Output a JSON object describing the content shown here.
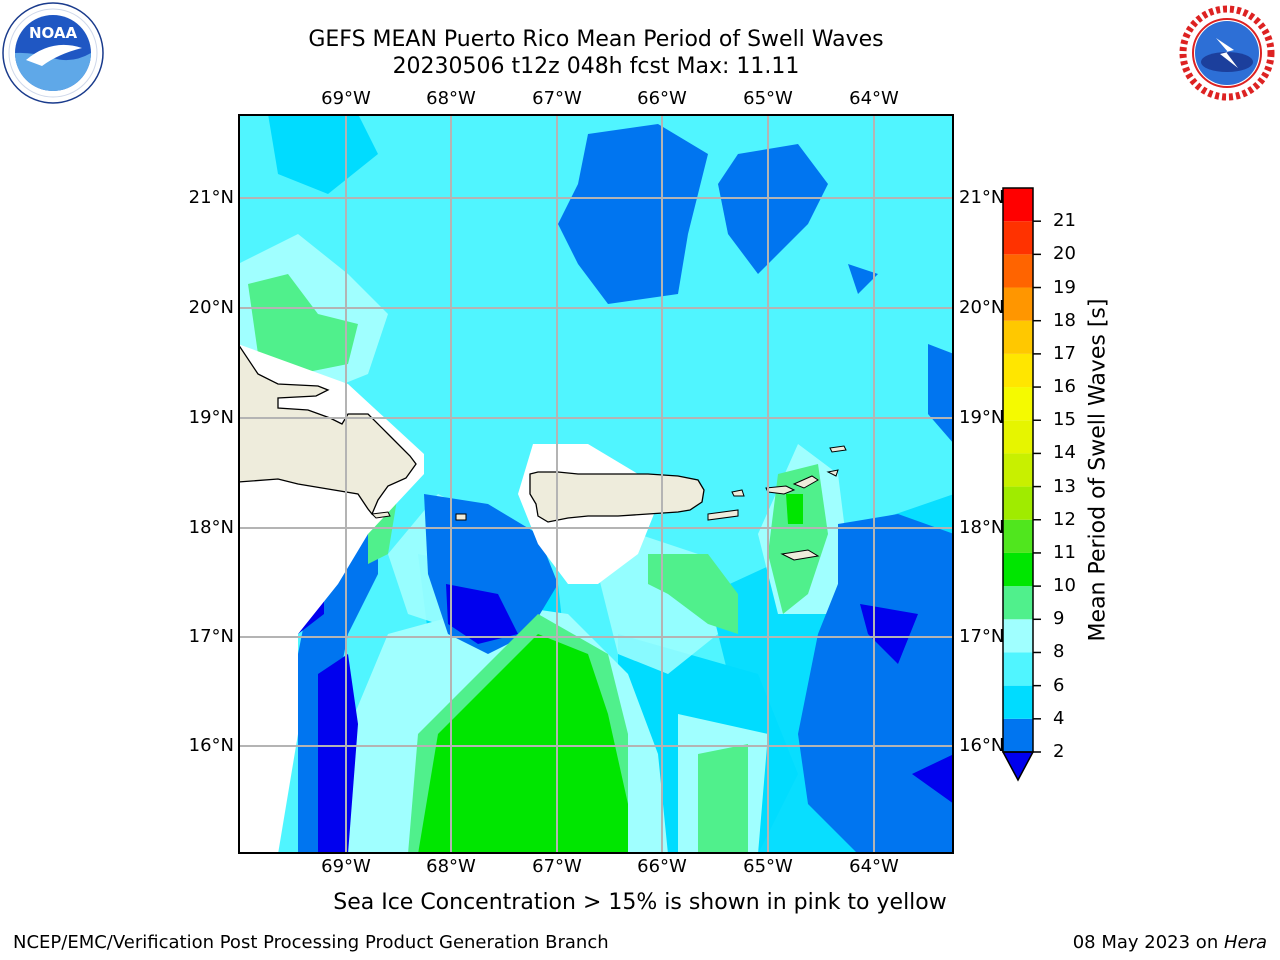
{
  "title": {
    "line1": "GEFS MEAN Puerto Rico Mean Period of Swell Waves",
    "line2": "20230506 t12z 048h fcst   Max: 11.11"
  },
  "logos": {
    "left": {
      "icon": "noaa-logo",
      "text": "NOAA",
      "ring_text": "NATIONAL OCEANIC AND ATMOSPHERIC ADMINISTRATION · U.S. DEPARTMENT OF COMMERCE"
    },
    "right": {
      "icon": "nws-logo",
      "ring_text": "NATIONAL WEATHER SERVICE"
    }
  },
  "map": {
    "longitude_ticks": [
      "69°W",
      "68°W",
      "67°W",
      "66°W",
      "65°W",
      "64°W"
    ],
    "latitude_ticks": [
      "21°N",
      "20°N",
      "19°N",
      "18°N",
      "17°N",
      "16°N"
    ],
    "land_color": "#eeecdc",
    "grid": true
  },
  "colorbar": {
    "label": "Mean Period of Swell Waves [s]",
    "ticks": [
      "2",
      "4",
      "6",
      "8",
      "9",
      "10",
      "11",
      "12",
      "13",
      "14",
      "15",
      "16",
      "17",
      "18",
      "19",
      "20",
      "21"
    ],
    "under_color": "#0000ee",
    "bin_colors": [
      "#0075f0",
      "#00dcff",
      "#50f5ff",
      "#a0ffff",
      "#50f08c",
      "#00e600",
      "#50e61e",
      "#a0eb00",
      "#c8f000",
      "#e6f500",
      "#f5fa00",
      "#ffe600",
      "#ffc800",
      "#ff9600",
      "#ff6400",
      "#ff3200",
      "#ff0000"
    ]
  },
  "note": "Sea Ice Concentration > 15% is shown in pink to yellow",
  "footer": {
    "left": "NCEP/EMC/Verification Post Processing Product Generation Branch",
    "right_date": "08 May 2023 on ",
    "right_host": "Hera"
  }
}
